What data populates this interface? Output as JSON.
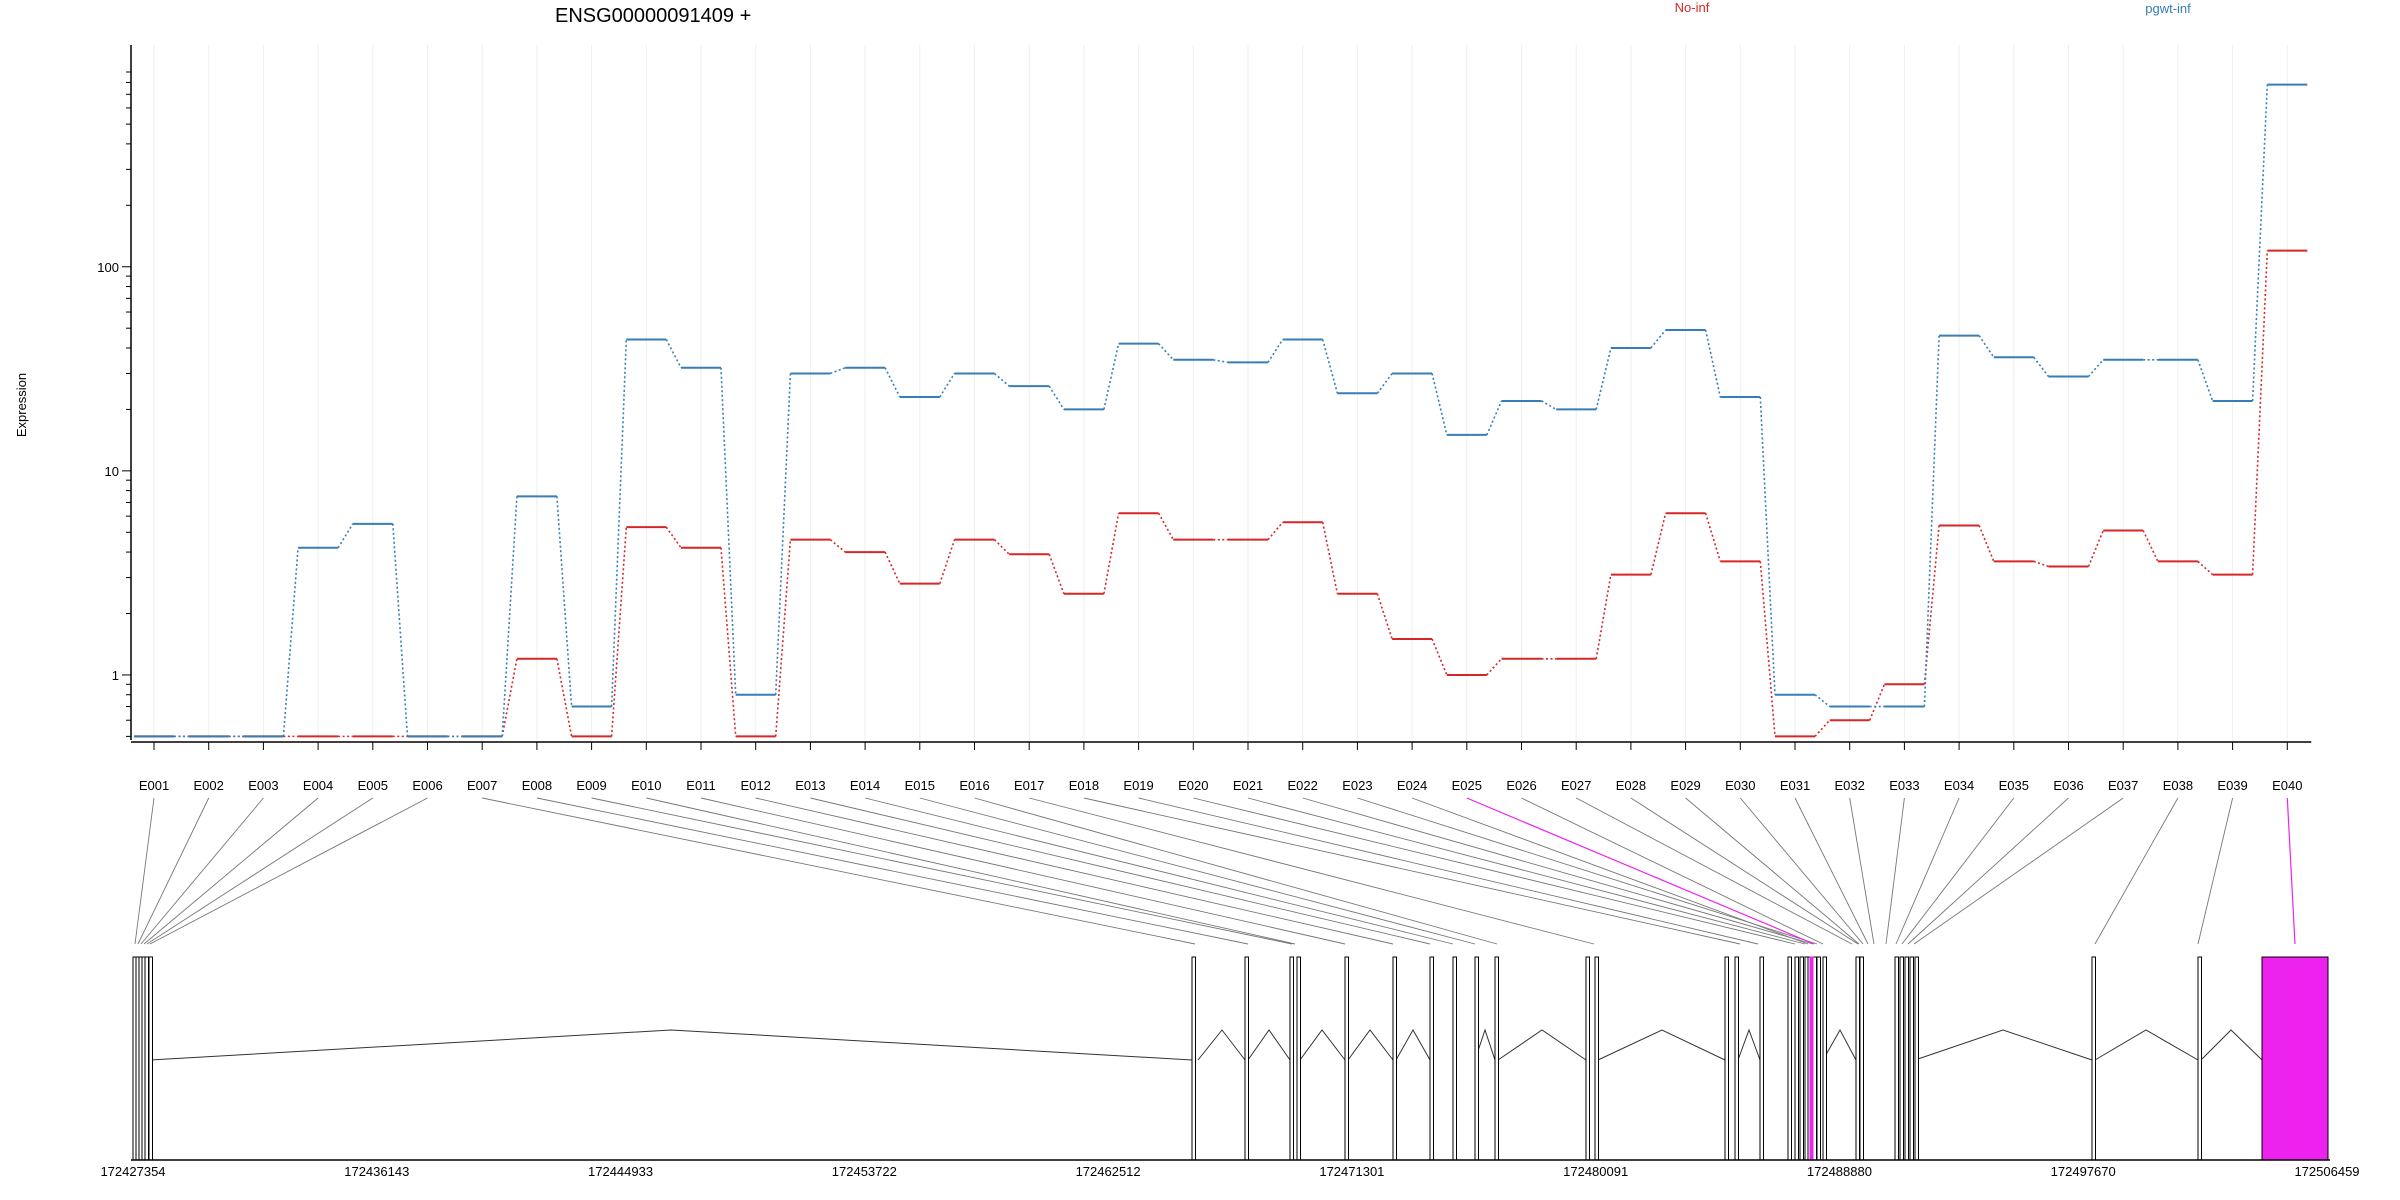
{
  "chart_data": {
    "type": "line",
    "title": "ENSG00000091409 +",
    "ylabel": "Expression",
    "xlabel": "",
    "yscale": "log",
    "ylim": [
      0.48,
      900
    ],
    "yticks": [
      1,
      10,
      100
    ],
    "yticklabels": [
      "1",
      "10",
      "100"
    ],
    "grid": "vertical",
    "legend_placement": "top",
    "categories": [
      "E001",
      "E002",
      "E003",
      "E004",
      "E005",
      "E006",
      "E007",
      "E008",
      "E009",
      "E010",
      "E011",
      "E012",
      "E013",
      "E014",
      "E015",
      "E016",
      "E017",
      "E018",
      "E019",
      "E020",
      "E021",
      "E022",
      "E023",
      "E024",
      "E025",
      "E026",
      "E027",
      "E028",
      "E029",
      "E030",
      "E031",
      "E032",
      "E033",
      "E034",
      "E035",
      "E036",
      "E037",
      "E038",
      "E039",
      "E040"
    ],
    "series": [
      {
        "name": "No-inf",
        "color": "#d62728",
        "values": [
          0.5,
          0.5,
          0.5,
          0.5,
          0.5,
          0.5,
          0.5,
          1.2,
          0.5,
          5.3,
          4.2,
          0.5,
          4.6,
          4.0,
          2.8,
          4.6,
          3.9,
          2.5,
          6.2,
          4.6,
          4.6,
          5.6,
          2.5,
          1.5,
          1.0,
          1.2,
          1.2,
          3.1,
          6.2,
          3.6,
          0.5,
          0.6,
          0.9,
          5.4,
          3.6,
          3.4,
          5.1,
          3.6,
          3.1,
          120
        ]
      },
      {
        "name": "pgwt-inf",
        "color": "#377eb8",
        "values": [
          0.5,
          0.5,
          0.5,
          4.2,
          5.5,
          0.5,
          0.5,
          7.5,
          0.7,
          44,
          32,
          0.8,
          30,
          32,
          23,
          30,
          26,
          20,
          42,
          35,
          34,
          44,
          24,
          30,
          15,
          22,
          20,
          40,
          49,
          23,
          0.8,
          0.7,
          0.7,
          46,
          36,
          29,
          35,
          35,
          22,
          780
        ]
      }
    ],
    "gene_model": {
      "coordinate_ticks": [
        "172427354",
        "172436143",
        "172444933",
        "172453722",
        "172462512",
        "172471301",
        "172480091",
        "172488880",
        "172497670",
        "172506459"
      ],
      "highlight_color": "#ee22ee",
      "highlighted_exons": [
        "E025",
        "E040"
      ]
    }
  }
}
